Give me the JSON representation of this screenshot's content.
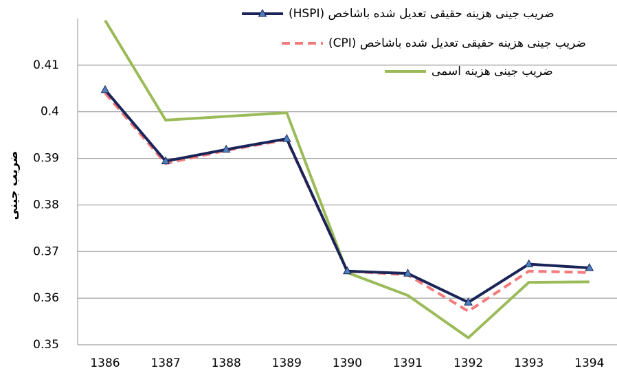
{
  "chart_data": {
    "type": "line",
    "y_label": "ضریب جینی",
    "categories": [
      "1386",
      "1387",
      "1388",
      "1389",
      "1390",
      "1391",
      "1392",
      "1393",
      "1394"
    ],
    "series": [
      {
        "name": "ضریب جینی هزینه حقیقی  تعدیل شده باشاخص (HSPI)",
        "color": "#1a2458",
        "style": "solid-marker",
        "values": [
          0.4047,
          0.3894,
          0.3919,
          0.3942,
          0.3658,
          0.3653,
          0.3591,
          0.3673,
          0.3665
        ]
      },
      {
        "name": "ضریب جینی هزینه حقیقی تعدیل شده باشاخص (CPI)",
        "color": "#f37a7a",
        "style": "dashed",
        "values": [
          0.404,
          0.3889,
          0.3917,
          0.394,
          0.3658,
          0.365,
          0.3572,
          0.3658,
          0.3655
        ]
      },
      {
        "name": "ضریب جینی هزینه اسمی",
        "color": "#9bbb59",
        "style": "solid",
        "values": [
          0.4196,
          0.3982,
          0.399,
          0.3998,
          0.3655,
          0.3606,
          0.3515,
          0.3634,
          0.3635
        ]
      }
    ],
    "ylim": [
      0.35,
      0.42
    ],
    "yticks": [
      0.35,
      0.36,
      0.37,
      0.38,
      0.39,
      0.4,
      0.41
    ],
    "grid": true
  }
}
